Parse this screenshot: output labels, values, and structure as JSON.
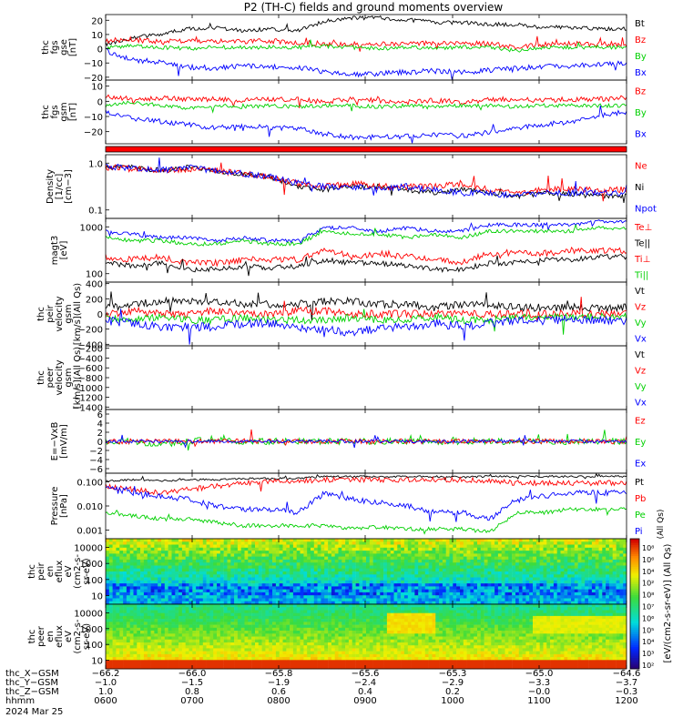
{
  "title": "P2 (TH-C) fields and ground moments overview",
  "colors": {
    "black": "#000000",
    "red": "#ff0000",
    "green": "#00d000",
    "blue": "#0000ff"
  },
  "chart_data": [
    {
      "type": "line",
      "id": "fgs-gse",
      "ylabel": [
        "thc",
        "fgs",
        "gse",
        "[nT]"
      ],
      "ylim": [
        -22,
        24
      ],
      "yticks": [
        "20",
        "10",
        "0",
        "−10",
        "−20"
      ],
      "ytick_values": [
        20,
        10,
        0,
        -10,
        -20
      ],
      "legend": [
        {
          "name": "Bt",
          "color": "black"
        },
        {
          "name": "Bz",
          "color": "red"
        },
        {
          "name": "By",
          "color": "green"
        },
        {
          "name": "Bx",
          "color": "blue"
        }
      ]
    },
    {
      "type": "line",
      "id": "fgs-gsm",
      "ylabel": [
        "thc",
        "fgs",
        "gsm",
        "[nT]"
      ],
      "ylim": [
        -28,
        14
      ],
      "yticks": [
        "10",
        "0",
        "−10",
        "−20"
      ],
      "ytick_values": [
        10,
        0,
        -10,
        -20
      ],
      "legend": [
        {
          "name": "Bz",
          "color": "red"
        },
        {
          "name": "By",
          "color": "green"
        },
        {
          "name": "Bx",
          "color": "blue"
        }
      ]
    },
    {
      "type": "bar",
      "id": "mode-bar",
      "ylabel": [],
      "yticks": [],
      "legend": []
    },
    {
      "type": "line",
      "id": "density",
      "ylabel": [
        "Density",
        "[1/cc]",
        "[cm−3]"
      ],
      "scale": "log",
      "yticks": [
        "1.0",
        "0.1"
      ],
      "ytick_values": [
        1.0,
        0.1
      ],
      "legend": [
        {
          "name": "Ne",
          "color": "red"
        },
        {
          "name": "Ni",
          "color": "black"
        },
        {
          "name": "Npot",
          "color": "blue"
        }
      ]
    },
    {
      "type": "line",
      "id": "temperature",
      "ylabel": [
        "magt3",
        "[eV]"
      ],
      "scale": "log",
      "yticks": [
        "1000",
        "100"
      ],
      "ytick_values": [
        1000,
        100
      ],
      "legend": [
        {
          "name": "Te⊥",
          "color": "red"
        },
        {
          "name": "Te||",
          "color": "black"
        },
        {
          "name": "Ti⊥",
          "color": "red"
        },
        {
          "name": "Ti||",
          "color": "green"
        }
      ]
    },
    {
      "type": "line",
      "id": "ion-velocity",
      "ylabel": [
        "thc",
        "peir",
        "velocity",
        "gsm",
        "[km/s](All Qs)"
      ],
      "ylim": [
        -420,
        420
      ],
      "yticks": [
        "400",
        "200",
        "0",
        "−200",
        "−400"
      ],
      "ytick_values": [
        400,
        200,
        0,
        -200,
        -400
      ],
      "legend": [
        {
          "name": "Vt",
          "color": "black"
        },
        {
          "name": "Vz",
          "color": "red"
        },
        {
          "name": "Vy",
          "color": "green"
        },
        {
          "name": "Vx",
          "color": "blue"
        }
      ]
    },
    {
      "type": "line",
      "id": "electron-velocity",
      "ylabel": [
        "thc",
        "peer",
        "velocity",
        "gsm",
        "[km/s](All Qs)"
      ],
      "ylim": [
        -1450,
        -150
      ],
      "yticks": [
        "−200",
        "−400",
        "−600",
        "−800",
        "−1000",
        "−1200",
        "−1400"
      ],
      "ytick_values": [
        -200,
        -400,
        -600,
        -800,
        -1000,
        -1200,
        -1400
      ],
      "legend": [
        {
          "name": "Vt",
          "color": "black"
        },
        {
          "name": "Vz",
          "color": "red"
        },
        {
          "name": "Vy",
          "color": "green"
        },
        {
          "name": "Vx",
          "color": "blue"
        }
      ]
    },
    {
      "type": "line",
      "id": "efield",
      "ylabel": [
        "E=−VxB",
        "[mV/m]"
      ],
      "ylim": [
        -7,
        7
      ],
      "yticks": [
        "6",
        "4",
        "2",
        "0",
        "−2",
        "−4",
        "−6"
      ],
      "ytick_values": [
        6,
        4,
        2,
        0,
        -2,
        -4,
        -6
      ],
      "legend": [
        {
          "name": "Ez",
          "color": "red"
        },
        {
          "name": "Ey",
          "color": "green"
        },
        {
          "name": "Ex",
          "color": "blue"
        }
      ]
    },
    {
      "type": "line",
      "id": "pressure",
      "ylabel": [
        "Pressure",
        "[nPa]"
      ],
      "scale": "log",
      "yticks": [
        "0.100",
        "0.010",
        "0.001"
      ],
      "ytick_values": [
        0.1,
        0.01,
        0.001
      ],
      "legend": [
        {
          "name": "Pt",
          "color": "black"
        },
        {
          "name": "Pb",
          "color": "red"
        },
        {
          "name": "Pe",
          "color": "green"
        },
        {
          "name": "Pi",
          "color": "blue"
        }
      ],
      "legend_note": "(All Qs)"
    },
    {
      "type": "heatmap",
      "id": "ion-spectrogram",
      "ylabel": [
        "thc",
        "peir",
        "en",
        "eflux",
        "eV",
        "(cm2-s-",
        "sr-eV)"
      ],
      "scale": "log",
      "yticks": [
        "10000",
        "1000",
        "100",
        "10"
      ],
      "ytick_values": [
        10000,
        1000,
        100,
        10
      ]
    },
    {
      "type": "heatmap",
      "id": "electron-spectrogram",
      "ylabel": [
        "thc",
        "peer",
        "en",
        "eflux",
        "eV",
        "(cm2-s-",
        "sr-eV)"
      ],
      "scale": "log",
      "yticks": [
        "10000",
        "1000",
        "100",
        "10"
      ],
      "ytick_values": [
        10000,
        1000,
        100,
        10
      ]
    }
  ],
  "colorbar": {
    "ticks": [
      "10⁸",
      "10⁶",
      "10⁴",
      "10²",
      "10⁸",
      "10⁷",
      "10⁶",
      "10⁵",
      "10⁴",
      "10³",
      "10²"
    ],
    "label": "[eV/(cm2-s-sr-eV)] (All Qs)"
  },
  "x_axis": {
    "row_labels": [
      "thc_X−GSM",
      "thc_Y−GSM",
      "thc_Z−GSM",
      "hhmm",
      "2024 Mar 25"
    ],
    "columns": [
      {
        "x": "−66.2",
        "y": "−1.0",
        "z": "1.0",
        "t": "0600"
      },
      {
        "x": "−66.0",
        "y": "−1.5",
        "z": "0.8",
        "t": "0700"
      },
      {
        "x": "−65.8",
        "y": "−1.9",
        "z": "0.6",
        "t": "0800"
      },
      {
        "x": "−65.6",
        "y": "−2.4",
        "z": "0.4",
        "t": "0900"
      },
      {
        "x": "−65.3",
        "y": "−2.9",
        "z": "0.2",
        "t": "1000"
      },
      {
        "x": "−65.0",
        "y": "−3.3",
        "z": "−0.0",
        "t": "1100"
      },
      {
        "x": "−64.6",
        "y": "−3.7",
        "z": "−0.3",
        "t": "1200"
      }
    ]
  }
}
